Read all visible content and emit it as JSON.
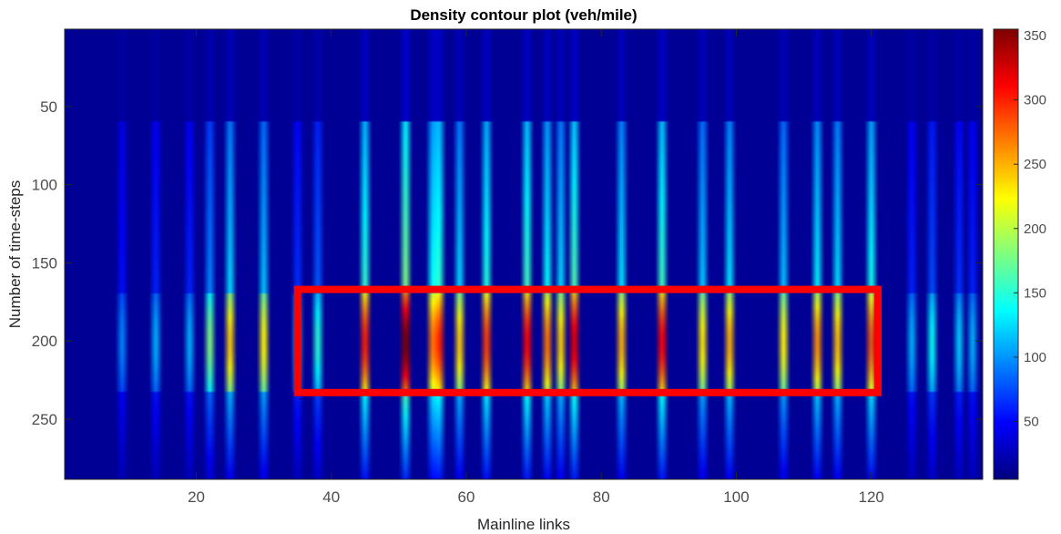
{
  "chart_data": {
    "type": "heatmap",
    "title": "Density contour plot (veh/mile)",
    "xlabel": "Mainline links",
    "ylabel": "Number of time-steps",
    "xlim": [
      0.5,
      136.5
    ],
    "ylim": [
      0.5,
      288.5
    ],
    "y_direction": "reversed",
    "x_ticks": [
      20,
      40,
      60,
      80,
      100,
      120
    ],
    "y_ticks": [
      50,
      100,
      150,
      200,
      250
    ],
    "n_links": 136,
    "n_timesteps": 288,
    "colormap": "jet",
    "clim": [
      5,
      355
    ],
    "colorbar_ticks": [
      50,
      100,
      150,
      200,
      250,
      300,
      350
    ],
    "background_value": 12,
    "congested_columns": [
      {
        "link": 9,
        "peak": 95
      },
      {
        "link": 14,
        "peak": 110
      },
      {
        "link": 19,
        "peak": 110
      },
      {
        "link": 22,
        "peak": 180
      },
      {
        "link": 25,
        "peak": 240
      },
      {
        "link": 30,
        "peak": 225
      },
      {
        "link": 35,
        "peak": 120
      },
      {
        "link": 38,
        "peak": 150
      },
      {
        "link": 45,
        "peak": 300
      },
      {
        "link": 51,
        "peak": 355
      },
      {
        "link": 55,
        "peak": 270
      },
      {
        "link": 56,
        "peak": 300
      },
      {
        "link": 59,
        "peak": 240
      },
      {
        "link": 63,
        "peak": 290
      },
      {
        "link": 69,
        "peak": 310
      },
      {
        "link": 72,
        "peak": 270
      },
      {
        "link": 74,
        "peak": 240
      },
      {
        "link": 76,
        "peak": 320
      },
      {
        "link": 83,
        "peak": 250
      },
      {
        "link": 89,
        "peak": 310
      },
      {
        "link": 95,
        "peak": 230
      },
      {
        "link": 99,
        "peak": 250
      },
      {
        "link": 107,
        "peak": 225
      },
      {
        "link": 112,
        "peak": 260
      },
      {
        "link": 115,
        "peak": 245
      },
      {
        "link": 120,
        "peak": 280
      },
      {
        "link": 126,
        "peak": 110
      },
      {
        "link": 129,
        "peak": 140
      },
      {
        "link": 133,
        "peak": 120
      },
      {
        "link": 135,
        "peak": 110
      }
    ],
    "annotations": [
      {
        "type": "rectangle",
        "x_range": [
          35,
          121
        ],
        "y_range": [
          167,
          233
        ],
        "color": "#ff0000"
      }
    ]
  },
  "colors": {
    "highlight_box": "#ff0000",
    "axis": "#262626",
    "tick_text": "#4d4d4d"
  }
}
